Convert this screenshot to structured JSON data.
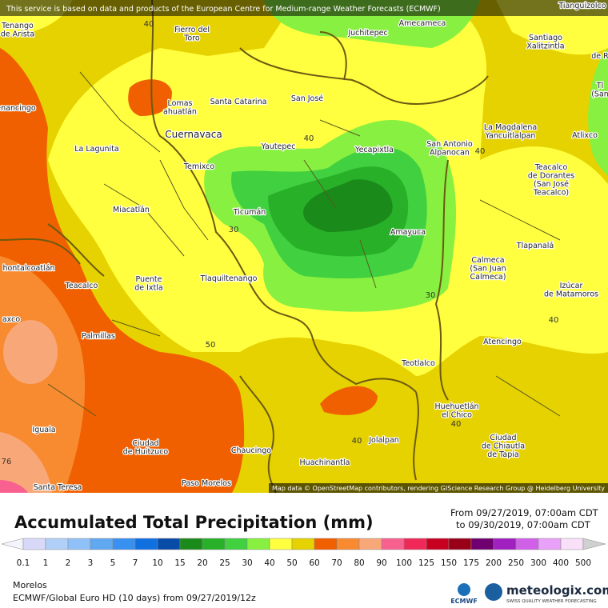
{
  "header": {
    "attribution": "This service is based on data and products of the European Centre for Medium-range Weather Forecasts (ECMWF)"
  },
  "map": {
    "credit": "Map data © OpenStreetMap contributors, rendering GIScience Research Group @ Heidelberg University",
    "places": [
      {
        "lines": [
          "Tenango",
          "de Arista"
        ]
      },
      {
        "lines": [
          "Fierro del",
          "Toro"
        ]
      },
      {
        "lines": [
          "Juchitepec"
        ]
      },
      {
        "lines": [
          "Amecameca"
        ]
      },
      {
        "lines": [
          "Tianguizolco"
        ]
      },
      {
        "lines": [
          "Santiago",
          "Xalitzintla"
        ]
      },
      {
        "lines": [
          "de R"
        ]
      },
      {
        "lines": [
          "Lomas",
          "ahuatlán"
        ]
      },
      {
        "lines": [
          "Santa Catarina"
        ]
      },
      {
        "lines": [
          "San José"
        ]
      },
      {
        "lines": [
          "enancingo"
        ]
      },
      {
        "lines": [
          "Cuernavaca"
        ]
      },
      {
        "lines": [
          "Yautepec"
        ]
      },
      {
        "lines": [
          "Yecapixtla"
        ]
      },
      {
        "lines": [
          "San Antonio",
          "Alpanocan"
        ]
      },
      {
        "lines": [
          "La Magdalena",
          "Yancuitlalpan"
        ]
      },
      {
        "lines": [
          "Atlixco"
        ]
      },
      {
        "lines": [
          "Tl",
          "(San"
        ]
      },
      {
        "lines": [
          "La Lagunita"
        ]
      },
      {
        "lines": [
          "Temixco"
        ]
      },
      {
        "lines": [
          "Teacalco",
          "de Dorantes",
          "(San José",
          "Teacalco)"
        ]
      },
      {
        "lines": [
          "Miacatlán"
        ]
      },
      {
        "lines": [
          "Ticumán"
        ]
      },
      {
        "lines": [
          "Amayuca"
        ]
      },
      {
        "lines": [
          "Tlapanalá"
        ]
      },
      {
        "lines": [
          "Calmeca",
          "(San Juan",
          "Calmeca)"
        ]
      },
      {
        "lines": [
          "hontalcoatlán"
        ]
      },
      {
        "lines": [
          "Teacalco"
        ]
      },
      {
        "lines": [
          "Puente",
          "de Ixtla"
        ]
      },
      {
        "lines": [
          "Tlaquiltenango"
        ]
      },
      {
        "lines": [
          "Izúcar",
          "de Matamoros"
        ]
      },
      {
        "lines": [
          "axco"
        ]
      },
      {
        "lines": [
          "Palmillas"
        ]
      },
      {
        "lines": [
          "Atencingo"
        ]
      },
      {
        "lines": [
          "Teotlalco"
        ]
      },
      {
        "lines": [
          "Huehuetlán",
          "el Chico"
        ]
      },
      {
        "lines": [
          "Iguala"
        ]
      },
      {
        "lines": [
          "Ciudad",
          "de Huitzuco"
        ]
      },
      {
        "lines": [
          "Jolalpan"
        ]
      },
      {
        "lines": [
          "Ciudad",
          "de Chiautla",
          "de Tapia"
        ]
      },
      {
        "lines": [
          "Chaucingo"
        ]
      },
      {
        "lines": [
          "Huachinantla"
        ]
      },
      {
        "lines": [
          "Santa Teresa"
        ]
      },
      {
        "lines": [
          "Paso Morelos"
        ]
      }
    ],
    "contour_labels": [
      40,
      40,
      40,
      30,
      30,
      40,
      50,
      40,
      40,
      76
    ]
  },
  "legend": {
    "title": "Accumulated Total Precipitation (mm)",
    "date_from": "From 09/27/2019, 07:00am CDT",
    "date_to": "to 09/30/2019, 07:00am CDT",
    "values": [
      0.1,
      1,
      2,
      3,
      5,
      7,
      10,
      15,
      20,
      25,
      30,
      40,
      50,
      60,
      70,
      80,
      90,
      100,
      125,
      150,
      175,
      200,
      250,
      300,
      400,
      500
    ],
    "colors": [
      "#f4f4fc",
      "#d8d8f8",
      "#b0d0f8",
      "#90c0f8",
      "#60a8f0",
      "#3890f0",
      "#1070e0",
      "#084ca8",
      "#1a8a1a",
      "#28b028",
      "#40d040",
      "#88f040",
      "#ffff40",
      "#e6d200",
      "#f06000",
      "#f88a30",
      "#f8a878",
      "#f86090",
      "#f02858",
      "#c80020",
      "#980018",
      "#700070",
      "#a020c0",
      "#d060e8",
      "#e8a0f8",
      "#f8e0f8",
      "#d0d0d0"
    ]
  },
  "footer": {
    "region": "Morelos",
    "model": "ECMWF/Global Euro HD (10 days) from 09/27/2019/12z",
    "ecmwf": "ECMWF",
    "brand": "meteologix.com",
    "tagline": "SWISS QUALITY WEATHER FORECASTING"
  }
}
